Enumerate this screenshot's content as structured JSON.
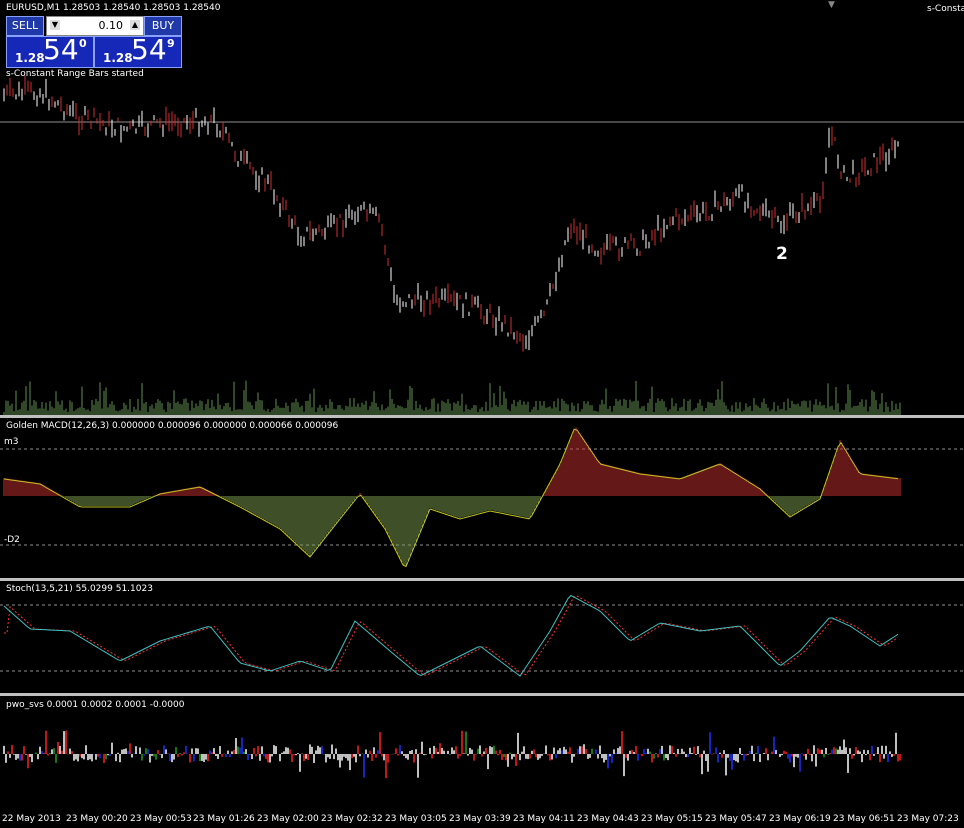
{
  "header": {
    "symbol": "EURUSD,M1",
    "ohlc": "1.28503 1.28540 1.28503 1.28540",
    "right_label": "s-Constant"
  },
  "trade": {
    "sell_label": "SELL",
    "buy_label": "BUY",
    "lot": "0.10",
    "sell": {
      "prefix": "1.28",
      "big": "54",
      "sup": "0"
    },
    "buy": {
      "prefix": "1.28",
      "big": "54",
      "sup": "9"
    }
  },
  "status_text": "s-Constant Range Bars started",
  "annotation": "2",
  "macd": {
    "label": "Golden MACD(12,26,3) 0.000000 0.000096 0.000000 0.000066 0.000096",
    "upper_level": "m3",
    "lower_level": "-D2"
  },
  "stoch": {
    "label": "Stoch(13,5,21) 55.0299 51.1023"
  },
  "pwo": {
    "label": "pwo_svs 0.0001 0.0002 0.0001 -0.0000"
  },
  "time_axis": [
    "22 May 2013",
    "23 May 00:20",
    "23 May 00:53",
    "23 May 01:26",
    "23 May 02:00",
    "23 May 02:32",
    "23 May 03:05",
    "23 May 03:39",
    "23 May 04:11",
    "23 May 04:43",
    "23 May 05:15",
    "23 May 05:47",
    "23 May 06:19",
    "23 May 06:51",
    "23 May 07:23"
  ],
  "colors": {
    "up": "#d03030",
    "down": "#ffffff",
    "volume": "#5f8f4f",
    "stoch_main": "#40c0c0",
    "stoch_signal": "#ff3030",
    "level_line": "#c0c0c0",
    "macd_pos": "#c83030",
    "macd_neg": "#7ea050"
  }
}
